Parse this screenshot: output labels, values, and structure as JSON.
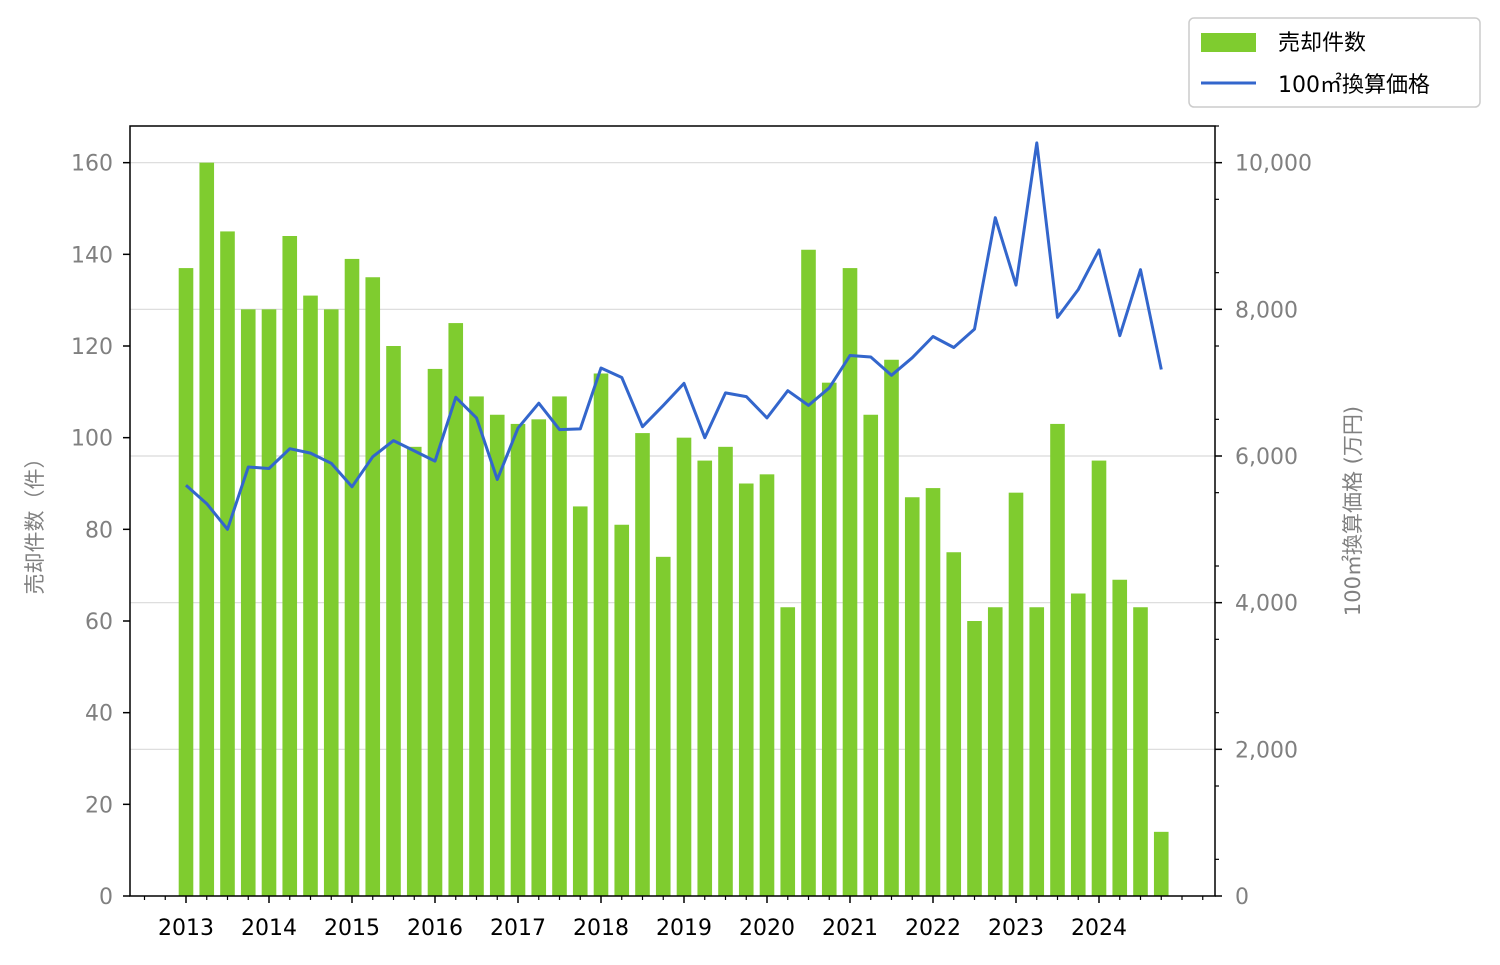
{
  "chart_data": {
    "type": "bar",
    "title": "",
    "ylabel": "売却件数（件）",
    "y2label": "100㎡換算価格 (万円)",
    "ylim": [
      0,
      168
    ],
    "y2lim": [
      0,
      10500
    ],
    "yticks": [
      "0",
      "20",
      "40",
      "60",
      "80",
      "100",
      "120",
      "140",
      "160"
    ],
    "y2ticks": [
      "0",
      "2,000",
      "4,000",
      "6,000",
      "8,000",
      "10,000"
    ],
    "x_tick_labels": [
      "2013",
      "2014",
      "2015",
      "2016",
      "2017",
      "2018",
      "2019",
      "2020",
      "2021",
      "2022",
      "2023",
      "2024"
    ],
    "grid": true,
    "legend_position": "top-right",
    "periods": [
      "2013Q1",
      "2013Q2",
      "2013Q3",
      "2013Q4",
      "2014Q1",
      "2014Q2",
      "2014Q3",
      "2014Q4",
      "2015Q1",
      "2015Q2",
      "2015Q3",
      "2015Q4",
      "2016Q1",
      "2016Q2",
      "2016Q3",
      "2016Q4",
      "2017Q1",
      "2017Q2",
      "2017Q3",
      "2017Q4",
      "2018Q1",
      "2018Q2",
      "2018Q3",
      "2018Q4",
      "2019Q1",
      "2019Q2",
      "2019Q3",
      "2019Q4",
      "2020Q1",
      "2020Q2",
      "2020Q3",
      "2020Q4",
      "2021Q1",
      "2021Q2",
      "2021Q3",
      "2021Q4",
      "2022Q1",
      "2022Q2",
      "2022Q3",
      "2022Q4",
      "2023Q1",
      "2023Q2",
      "2023Q3",
      "2023Q4",
      "2024Q1",
      "2024Q2",
      "2024Q3",
      "2024Q4"
    ],
    "series": [
      {
        "name": "売却件数",
        "type": "bar",
        "axis": "left",
        "color": "#7fcc2f",
        "values": [
          137,
          160,
          145,
          128,
          128,
          144,
          131,
          128,
          139,
          135,
          120,
          98,
          115,
          125,
          109,
          105,
          103,
          104,
          109,
          85,
          114,
          81,
          101,
          74,
          100,
          95,
          98,
          90,
          92,
          63,
          141,
          112,
          137,
          105,
          117,
          87,
          89,
          75,
          60,
          63,
          88,
          63,
          103,
          66,
          95,
          69,
          63,
          14
        ]
      },
      {
        "name": "100㎡換算価格",
        "type": "line",
        "axis": "right",
        "color": "#3366cc",
        "values": [
          5600,
          5350,
          5000,
          5850,
          5830,
          6100,
          6040,
          5900,
          5580,
          5990,
          6210,
          6070,
          5930,
          6800,
          6520,
          5680,
          6380,
          6720,
          6360,
          6370,
          7200,
          7070,
          6400,
          6690,
          6990,
          6250,
          6860,
          6810,
          6520,
          6890,
          6690,
          6930,
          7370,
          7350,
          7100,
          7340,
          7630,
          7480,
          7730,
          9250,
          8330,
          10270,
          7890,
          8270,
          8810,
          7640,
          8540,
          7180
        ]
      }
    ]
  }
}
